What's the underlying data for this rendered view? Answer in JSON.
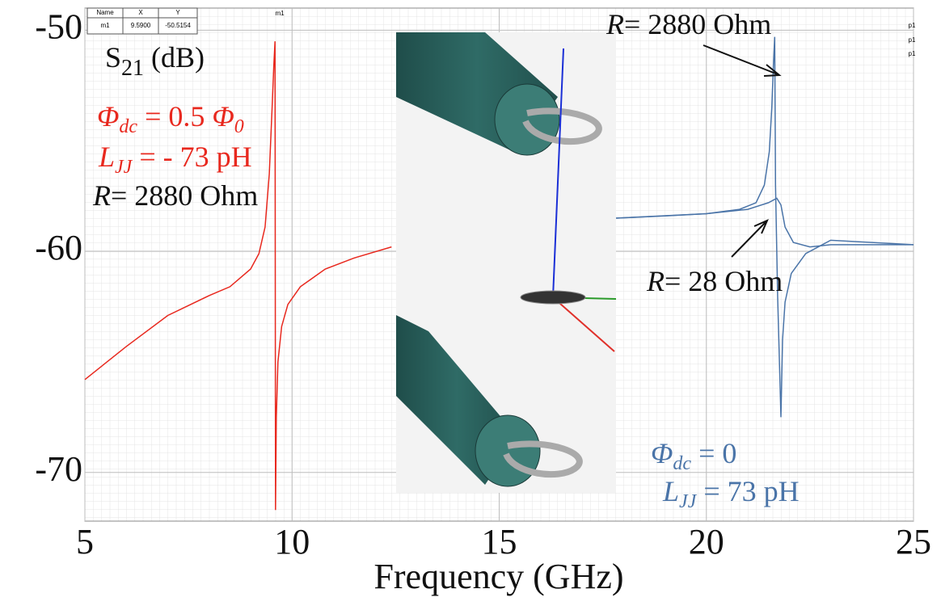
{
  "chart_data": {
    "type": "line",
    "x_label": "Frequency (GHz)",
    "xlim": [
      5,
      25
    ],
    "ylim": [
      -72.2,
      -49
    ],
    "xticks": [
      5,
      10,
      15,
      20,
      25
    ],
    "yticks": [
      -70,
      -60,
      -50
    ],
    "grid": true,
    "series": [
      {
        "color": "#e8281e",
        "x": [
          5,
          6,
          7,
          8,
          8.5,
          9,
          9.2,
          9.35,
          9.45,
          9.52,
          9.56,
          9.59,
          9.6,
          9.62,
          9.66,
          9.75,
          9.9,
          10.2,
          10.8,
          11.5,
          12.4
        ],
        "values": [
          -65.8,
          -64.3,
          -62.9,
          -62.0,
          -61.6,
          -60.8,
          -60.1,
          -58.9,
          -56.5,
          -53.5,
          -51.6,
          -50.5,
          -71.7,
          -67.5,
          -65.0,
          -63.4,
          -62.4,
          -61.6,
          -60.8,
          -60.3,
          -59.8
        ]
      },
      {
        "color": "#4a74a8",
        "x": [
          17.8,
          19,
          20,
          20.8,
          21.2,
          21.4,
          21.52,
          21.58,
          21.62,
          21.65,
          21.67,
          21.72,
          21.8,
          21.84,
          21.9,
          22.05,
          22.4,
          23,
          24,
          25
        ],
        "values": [
          -58.5,
          -58.4,
          -58.3,
          -58.1,
          -57.8,
          -57.0,
          -55.5,
          -53.5,
          -51.5,
          -50.3,
          -57.0,
          -62.0,
          -67.5,
          -64.0,
          -62.3,
          -61.0,
          -60.1,
          -59.5,
          -59.6,
          -59.7
        ]
      },
      {
        "color": "#4a74a8",
        "x": [
          17.8,
          20,
          21,
          21.5,
          21.7,
          21.8,
          21.9,
          22.1,
          22.5,
          23,
          24,
          25
        ],
        "values": [
          -58.5,
          -58.3,
          -58.1,
          -57.8,
          -57.6,
          -57.9,
          -58.9,
          -59.6,
          -59.8,
          -59.7,
          -59.7,
          -59.7
        ]
      }
    ],
    "marker_table": {
      "header": [
        "Name",
        "X",
        "Y"
      ],
      "row": [
        "m1",
        "9.5900",
        "-50.5154"
      ]
    },
    "marker_label": "m1",
    "port_labels": [
      "p1",
      "p1",
      "p1"
    ],
    "annotations": {
      "s21": {
        "main": "S",
        "sub": "21",
        "rest": " (dB)"
      },
      "flux_red": {
        "phi": "Φ",
        "sub": "dc",
        "mid": " = 0.5 ",
        "phi2": "Φ",
        "sub2": "0"
      },
      "ljj_red": {
        "main": "L",
        "sub": "JJ",
        "rest": " = - 73 pH"
      },
      "r_red": {
        "r": "R",
        "rest": "= 2880 Ohm"
      },
      "r_high": {
        "r": "R",
        "rest": "= 2880 Ohm"
      },
      "r_low": {
        "r": "R",
        "rest": "= 28 Ohm"
      },
      "flux_blue": {
        "phi": "Φ",
        "sub": "dc",
        "rest": " = 0"
      },
      "ljj_blue": {
        "main": "L",
        "sub": "JJ",
        "rest": " = 73 pH"
      }
    }
  }
}
